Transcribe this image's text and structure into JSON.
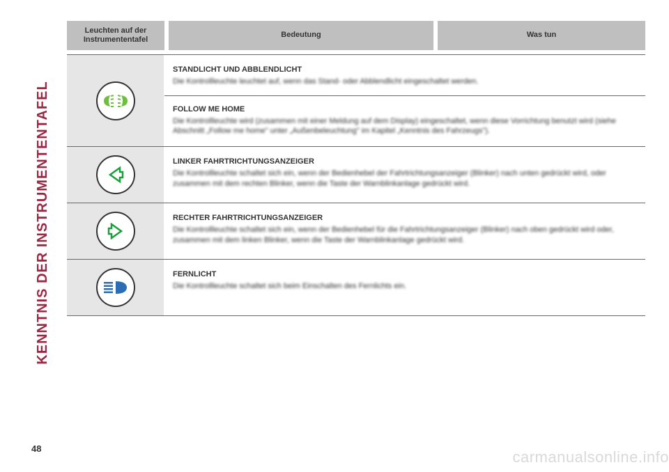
{
  "sidebar": {
    "label": "KENNTNIS DER INSTRUMENTENTAFEL"
  },
  "page_number": "48",
  "watermark": "carmanualsonline.info",
  "headers": {
    "col1": "Leuchten auf der\nInstrumententafel",
    "col2": "Bedeutung",
    "col3": "Was tun"
  },
  "rows": [
    {
      "icon": "sidelights",
      "icon_color": "#6fbf3f",
      "sections": [
        {
          "title": "STANDLICHT UND ABBLENDLICHT",
          "body": "Die Kontrollleuchte leuchtet auf, wenn das Stand- oder Abblendlicht eingeschaltet werden."
        },
        {
          "title": "FOLLOW ME HOME",
          "body": "Die Kontrollleuchte wird (zusammen mit einer Meldung auf dem Display) eingeschaltet, wenn diese Vorrichtung benutzt wird (siehe Abschnitt „Follow me home\" unter „Außenbeleuchtung\" im Kapitel „Kenntnis des Fahrzeugs\")."
        }
      ]
    },
    {
      "icon": "arrow-left",
      "icon_color": "#1a9e3c",
      "sections": [
        {
          "title": "LINKER FAHRTRICHTUNGSANZEIGER",
          "body": "Die Kontrollleuchte schaltet sich ein, wenn der Bedienhebel der Fahrtrichtungsanzeiger (Blinker) nach unten gedrückt wird, oder zusammen mit dem rechten Blinker, wenn die Taste der Warnblinkanlage gedrückt wird."
        }
      ]
    },
    {
      "icon": "arrow-right",
      "icon_color": "#1a9e3c",
      "sections": [
        {
          "title": "RECHTER FAHRTRICHTUNGSANZEIGER",
          "body": "Die Kontrollleuchte schaltet sich ein, wenn der Bedienhebel für die Fahrtrichtungsanzeiger (Blinker) nach oben gedrückt wird oder, zusammen mit dem linken Blinker, wenn die Taste der Warnblinkanlage gedrückt wird."
        }
      ]
    },
    {
      "icon": "high-beam",
      "icon_color": "#2a6db5",
      "sections": [
        {
          "title": "FERNLICHT",
          "body": "Die Kontrollleuchte schaltet sich beim Einschalten des Fernlichts ein."
        }
      ]
    }
  ]
}
